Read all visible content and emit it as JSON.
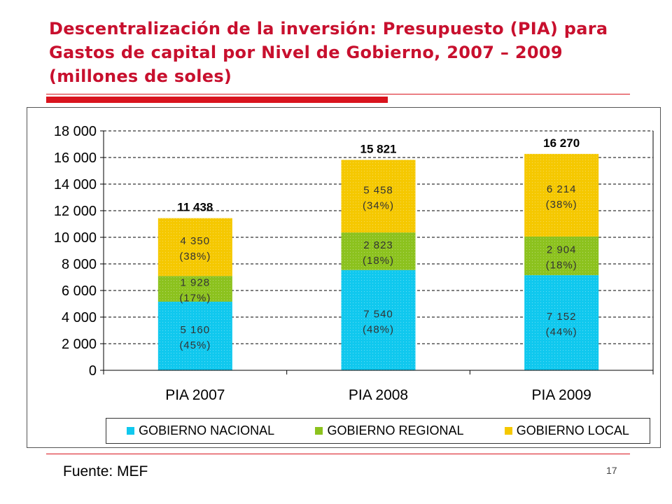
{
  "slide": {
    "title": "Descentralización de la inversión: Presupuesto (PIA) para Gastos de capital por Nivel de Gobierno, 2007 – 2009 (millones de soles)",
    "source": "Fuente: MEF",
    "page_number": "17"
  },
  "colors": {
    "title": "#c8102e",
    "accent_rule": "#d9141e",
    "nacional": "#10c8ee",
    "regional": "#8cc21e",
    "local": "#f5c800"
  },
  "chart_data": {
    "type": "bar",
    "stacked": true,
    "categories": [
      "PIA 2007",
      "PIA 2008",
      "PIA 2009"
    ],
    "series": [
      {
        "name": "GOBIERNO NACIONAL",
        "values": [
          5160,
          7540,
          7152
        ],
        "labels": [
          "5 160",
          "7 540",
          "7 152"
        ],
        "shares": [
          "(45%)",
          "(48%)",
          "(44%)"
        ],
        "color": "#10c8ee"
      },
      {
        "name": "GOBIERNO REGIONAL",
        "values": [
          1928,
          2823,
          2904
        ],
        "labels": [
          "1 928",
          "2 823",
          "2 904"
        ],
        "shares": [
          "(17%)",
          "(18%)",
          "(18%)"
        ],
        "color": "#8cc21e"
      },
      {
        "name": "GOBIERNO LOCAL",
        "values": [
          4350,
          5458,
          6214
        ],
        "labels": [
          "4 350",
          "5 458",
          "6 214"
        ],
        "shares": [
          "(38%)",
          "(34%)",
          "(38%)"
        ],
        "color": "#f5c800"
      }
    ],
    "totals": [
      11438,
      15821,
      16270
    ],
    "total_labels": [
      "11 438",
      "15 821",
      "16 270"
    ],
    "ylim": [
      0,
      18000
    ],
    "yticks": [
      0,
      2000,
      4000,
      6000,
      8000,
      10000,
      12000,
      14000,
      16000,
      18000
    ],
    "ytick_labels": [
      "0",
      "2 000",
      "4 000",
      "6 000",
      "8 000",
      "10 000",
      "12 000",
      "14 000",
      "16 000",
      "18 000"
    ],
    "grid": "dashed horizontal",
    "legend_placement": "bottom"
  }
}
